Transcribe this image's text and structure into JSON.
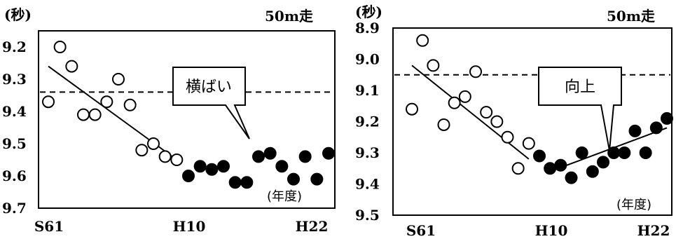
{
  "chart_data": [
    {
      "type": "scatter",
      "title": "50m走",
      "ylabel": "(秒)",
      "xlabel": "(年度)",
      "x_tick_labels": [
        "S61",
        "H10",
        "H22"
      ],
      "ylim": [
        9.7,
        9.15
      ],
      "y_ticks": [
        "9.2",
        "9.3",
        "9.4",
        "9.5",
        "9.6",
        "9.7"
      ],
      "reference_line": 9.34,
      "annotation": "横ばい",
      "series": [
        {
          "marker": "open",
          "x": [
            1986,
            1987,
            1988,
            1989,
            1990,
            1991,
            1992,
            1993,
            1994,
            1995,
            1996,
            1997
          ],
          "y": [
            9.37,
            9.2,
            9.26,
            9.41,
            9.41,
            9.37,
            9.3,
            9.38,
            9.52,
            9.5,
            9.54,
            9.55
          ]
        },
        {
          "marker": "filled",
          "x": [
            1998,
            1999,
            2000,
            2001,
            2002,
            2003,
            2004,
            2005,
            2006,
            2007,
            2008,
            2009,
            2010
          ],
          "y": [
            9.6,
            9.57,
            9.58,
            9.57,
            9.62,
            9.62,
            9.54,
            9.53,
            9.57,
            9.61,
            9.54,
            9.61,
            9.53
          ]
        }
      ],
      "trend_open": {
        "x": [
          1986,
          1997
        ],
        "y": [
          9.26,
          9.55
        ]
      }
    },
    {
      "type": "scatter",
      "title": "50m走",
      "ylabel": "(秒)",
      "xlabel": "(年度)",
      "x_tick_labels": [
        "S61",
        "H10",
        "H22"
      ],
      "ylim": [
        9.5,
        8.9
      ],
      "y_ticks": [
        "8.9",
        "9.0",
        "9.1",
        "9.2",
        "9.3",
        "9.4",
        "9.5"
      ],
      "reference_line": 9.05,
      "annotation": "向上",
      "series": [
        {
          "marker": "open",
          "x": [
            1986,
            1987,
            1988,
            1989,
            1990,
            1991,
            1992,
            1993,
            1994,
            1995,
            1996,
            1997
          ],
          "y": [
            9.16,
            8.94,
            9.02,
            9.21,
            9.14,
            9.12,
            9.04,
            9.17,
            9.2,
            9.25,
            9.35,
            9.27
          ]
        },
        {
          "marker": "filled",
          "x": [
            1998,
            1999,
            2000,
            2001,
            2002,
            2003,
            2004,
            2005,
            2006,
            2007,
            2008,
            2009,
            2010
          ],
          "y": [
            9.31,
            9.35,
            9.34,
            9.38,
            9.3,
            9.36,
            9.33,
            9.3,
            9.3,
            9.23,
            9.3,
            9.22,
            9.19
          ]
        }
      ],
      "trend_open": {
        "x": [
          1986,
          1997
        ],
        "y": [
          9.02,
          9.32
        ]
      },
      "trend_filled": {
        "x": [
          1999,
          2010
        ],
        "y": [
          9.36,
          9.22
        ]
      }
    }
  ]
}
